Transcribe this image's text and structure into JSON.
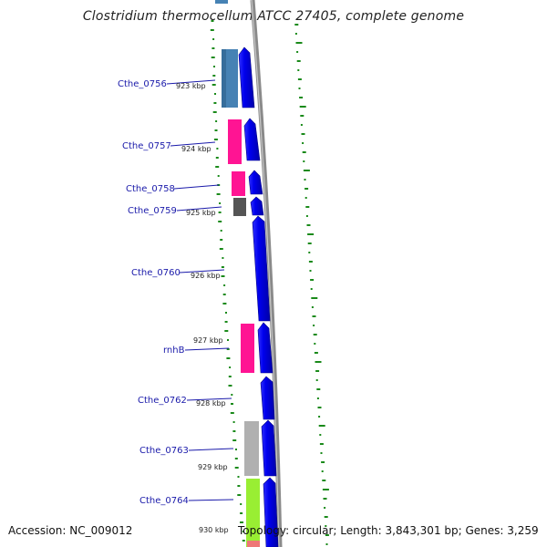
{
  "title": "Clostridium thermocellum ATCC 27405, complete genome",
  "accession_text": "Accession: NC_009012",
  "summary_text": "Topology: circular; Length: 3,843,301 bp; Genes: 3,259",
  "colors": {
    "backbone": "#888888",
    "gene_arrow": "#0000ee",
    "gc_skew": "#1a8a1a",
    "gene_label": "#1a1aaa",
    "cog_steelblue": "#4682b4",
    "cog_pink": "#ff1493",
    "cog_darkgray": "#555555",
    "cog_lightgray": "#b0b0b0",
    "cog_lime": "#99ee33",
    "cog_salmon": "#ee7777"
  },
  "genes": [
    {
      "label": "Cthe_0756",
      "cog_color": "#4682b4"
    },
    {
      "label": "Cthe_0757",
      "cog_color": "#ff1493"
    },
    {
      "label": "Cthe_0758",
      "cog_color": "#ff1493"
    },
    {
      "label": "Cthe_0759",
      "cog_color": "#555555"
    },
    {
      "label": "Cthe_0760",
      "cog_color": ""
    },
    {
      "label": "rnhB",
      "cog_color": "#ff1493"
    },
    {
      "label": "Cthe_0762",
      "cog_color": ""
    },
    {
      "label": "Cthe_0763",
      "cog_color": "#b0b0b0"
    },
    {
      "label": "Cthe_0764",
      "cog_color": "#99ee33"
    }
  ],
  "ticks": [
    "923 kbp",
    "924 kbp",
    "925 kbp",
    "926 kbp",
    "927 kbp",
    "928 kbp",
    "929 kbp",
    "930 kbp"
  ]
}
